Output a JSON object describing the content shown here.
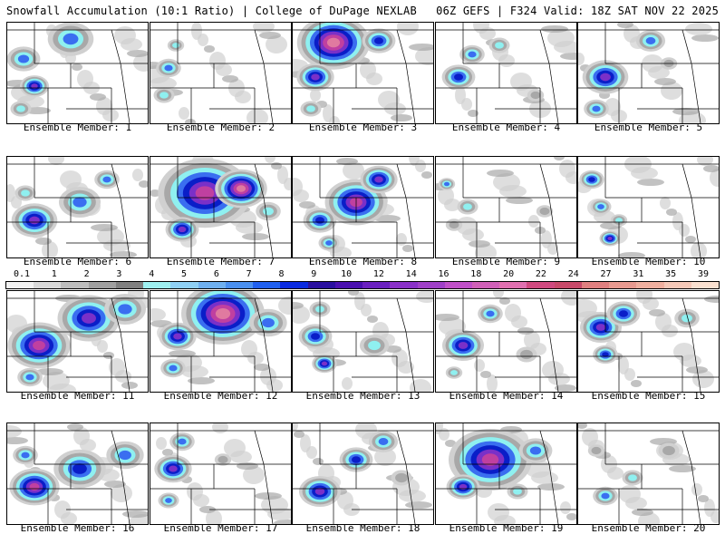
{
  "header": {
    "left": "Snowfall Accumulation (10:1 Ratio) | College of DuPage NEXLAB",
    "right": "06Z GEFS | F324 Valid: 18Z SAT NOV 22 2025"
  },
  "members": [
    {
      "label": "Ensemble Member: 1",
      "blobs": [
        [
          18,
          40,
          16,
          3
        ],
        [
          30,
          70,
          14,
          5
        ],
        [
          70,
          18,
          22,
          3
        ],
        [
          15,
          95,
          10,
          2
        ]
      ]
    },
    {
      "label": "Ensemble Member: 2",
      "blobs": [
        [
          20,
          50,
          12,
          3
        ],
        [
          15,
          80,
          10,
          2
        ],
        [
          28,
          25,
          8,
          2
        ]
      ]
    },
    {
      "label": "Ensemble Member: 3",
      "blobs": [
        [
          45,
          22,
          35,
          7
        ],
        [
          25,
          60,
          18,
          5
        ],
        [
          95,
          20,
          16,
          4
        ],
        [
          20,
          95,
          10,
          2
        ]
      ]
    },
    {
      "label": "Ensemble Member: 4",
      "blobs": [
        [
          25,
          60,
          16,
          4
        ],
        [
          40,
          35,
          12,
          3
        ],
        [
          70,
          25,
          10,
          2
        ],
        [
          110,
          80,
          8,
          1
        ]
      ]
    },
    {
      "label": "Ensemble Member: 5",
      "blobs": [
        [
          30,
          60,
          22,
          5
        ],
        [
          80,
          20,
          14,
          3
        ],
        [
          20,
          95,
          12,
          3
        ],
        [
          100,
          45,
          8,
          1
        ]
      ]
    },
    {
      "label": "Ensemble Member: 6",
      "blobs": [
        [
          30,
          70,
          22,
          5
        ],
        [
          80,
          50,
          20,
          3
        ],
        [
          110,
          25,
          12,
          3
        ],
        [
          20,
          40,
          10,
          2
        ]
      ]
    },
    {
      "label": "Ensemble Member: 7",
      "blobs": [
        [
          60,
          40,
          45,
          6
        ],
        [
          100,
          35,
          25,
          7
        ],
        [
          35,
          80,
          16,
          5
        ],
        [
          130,
          60,
          12,
          2
        ]
      ]
    },
    {
      "label": "Ensemble Member: 8",
      "blobs": [
        [
          70,
          50,
          30,
          6
        ],
        [
          30,
          70,
          16,
          4
        ],
        [
          95,
          25,
          18,
          5
        ],
        [
          40,
          95,
          10,
          3
        ]
      ]
    },
    {
      "label": "Ensemble Member: 9",
      "blobs": [
        [
          12,
          30,
          8,
          3
        ],
        [
          35,
          55,
          10,
          2
        ],
        [
          20,
          75,
          8,
          1
        ],
        [
          120,
          60,
          8,
          1
        ]
      ]
    },
    {
      "label": "Ensemble Member: 10",
      "blobs": [
        [
          15,
          25,
          12,
          4
        ],
        [
          25,
          55,
          10,
          3
        ],
        [
          35,
          90,
          10,
          5
        ],
        [
          45,
          70,
          8,
          2
        ]
      ]
    },
    {
      "label": "Ensemble Member: 11",
      "blobs": [
        [
          35,
          60,
          30,
          6
        ],
        [
          90,
          30,
          30,
          5
        ],
        [
          130,
          20,
          20,
          3
        ],
        [
          25,
          95,
          12,
          3
        ]
      ]
    },
    {
      "label": "Ensemble Member: 12",
      "blobs": [
        [
          80,
          25,
          40,
          7
        ],
        [
          30,
          50,
          18,
          5
        ],
        [
          25,
          85,
          12,
          3
        ],
        [
          130,
          35,
          18,
          3
        ]
      ]
    },
    {
      "label": "Ensemble Member: 13",
      "blobs": [
        [
          25,
          50,
          16,
          4
        ],
        [
          35,
          80,
          12,
          5
        ],
        [
          90,
          60,
          14,
          2
        ],
        [
          30,
          20,
          10,
          2
        ]
      ]
    },
    {
      "label": "Ensemble Member: 14",
      "blobs": [
        [
          30,
          60,
          20,
          5
        ],
        [
          60,
          25,
          12,
          3
        ],
        [
          100,
          70,
          10,
          1
        ],
        [
          20,
          90,
          8,
          2
        ]
      ]
    },
    {
      "label": "Ensemble Member: 15",
      "blobs": [
        [
          25,
          40,
          20,
          5
        ],
        [
          50,
          25,
          16,
          4
        ],
        [
          30,
          70,
          12,
          4
        ],
        [
          120,
          30,
          12,
          2
        ]
      ]
    },
    {
      "label": "Ensemble Member: 16",
      "blobs": [
        [
          30,
          70,
          24,
          6
        ],
        [
          80,
          50,
          25,
          4
        ],
        [
          130,
          35,
          18,
          3
        ],
        [
          20,
          35,
          12,
          3
        ]
      ]
    },
    {
      "label": "Ensemble Member: 17",
      "blobs": [
        [
          25,
          50,
          18,
          5
        ],
        [
          35,
          20,
          12,
          3
        ],
        [
          20,
          85,
          10,
          3
        ],
        [
          80,
          40,
          8,
          1
        ]
      ]
    },
    {
      "label": "Ensemble Member: 18",
      "blobs": [
        [
          30,
          75,
          20,
          5
        ],
        [
          70,
          40,
          16,
          4
        ],
        [
          100,
          20,
          14,
          3
        ],
        [
          120,
          60,
          10,
          1
        ]
      ]
    },
    {
      "label": "Ensemble Member: 19",
      "blobs": [
        [
          60,
          40,
          40,
          6
        ],
        [
          30,
          70,
          16,
          5
        ],
        [
          110,
          30,
          16,
          3
        ],
        [
          90,
          75,
          10,
          2
        ]
      ]
    },
    {
      "label": "Ensemble Member: 20",
      "blobs": [
        [
          30,
          80,
          12,
          3
        ],
        [
          60,
          60,
          10,
          2
        ],
        [
          100,
          30,
          10,
          1
        ],
        [
          20,
          30,
          8,
          1
        ]
      ]
    }
  ],
  "colorbar": {
    "labels": [
      "0.1",
      "1",
      "2",
      "3",
      "4",
      "5",
      "6",
      "7",
      "8",
      "9",
      "10",
      "12",
      "14",
      "16",
      "18",
      "20",
      "22",
      "24",
      "27",
      "31",
      "35",
      "39"
    ],
    "colors": [
      "#f2f2f2",
      "#d9d9d9",
      "#bdbdbd",
      "#a0a0a0",
      "#808080",
      "#9ef0f0",
      "#8fd0f5",
      "#6fb0f0",
      "#4a90f0",
      "#2060f0",
      "#0a2ae0",
      "#2a10a0",
      "#4a10b0",
      "#6a20c0",
      "#8a30c8",
      "#a040c8",
      "#c050c8",
      "#d060b8",
      "#e070b0",
      "#d04a80",
      "#c84a6a",
      "#e08080",
      "#e89a90",
      "#f0b0a0",
      "#f5c8b8",
      "#fae0d0"
    ]
  },
  "colors": {
    "grey_light": "#d0d0d0",
    "grey_mid": "#a8a8a8",
    "cyan": "#8ff0f0",
    "blue": "#3a6ef0",
    "blue_dark": "#0a1ec8",
    "purple": "#7a30c8",
    "magenta": "#c040a0",
    "pink": "#e07aa0",
    "peach": "#f5c8a8",
    "state_line": "#000000"
  }
}
